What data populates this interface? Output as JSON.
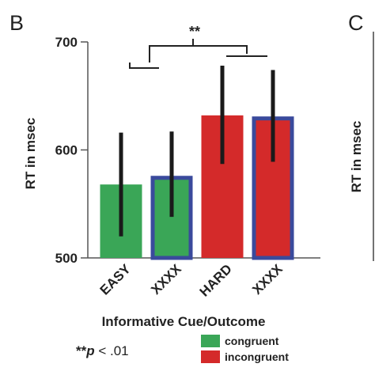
{
  "panel_labels": {
    "left": "B",
    "right": "C"
  },
  "right_panel_ylabel": "RT in msec",
  "significance_marker": "**",
  "footnote": {
    "stars": "**",
    "p": "p",
    "rest": " < .01"
  },
  "colors": {
    "congruent": "#3aa657",
    "incongruent": "#d42a2a",
    "highlight_outline": "#3a4a9c",
    "errorbar": "#1a1a1a"
  },
  "chart_data": {
    "type": "bar",
    "categories": [
      "EASY",
      "XXXX",
      "HARD",
      "XXXX"
    ],
    "values": [
      568,
      576,
      632,
      631
    ],
    "error_low": [
      520,
      538,
      587,
      589
    ],
    "error_high": [
      616,
      617,
      678,
      674
    ],
    "condition": [
      "congruent",
      "congruent",
      "incongruent",
      "incongruent"
    ],
    "highlighted": [
      false,
      true,
      false,
      true
    ],
    "ylabel": "RT in msec",
    "xlabel": "Informative Cue/Outcome",
    "ylim": [
      500,
      700
    ],
    "yticks": [
      500,
      600,
      700
    ],
    "legend": [
      {
        "label": "congruent",
        "condition": "congruent"
      },
      {
        "label": "incongruent",
        "condition": "incongruent"
      }
    ],
    "legend_position": "bottom-right",
    "grid": false
  }
}
